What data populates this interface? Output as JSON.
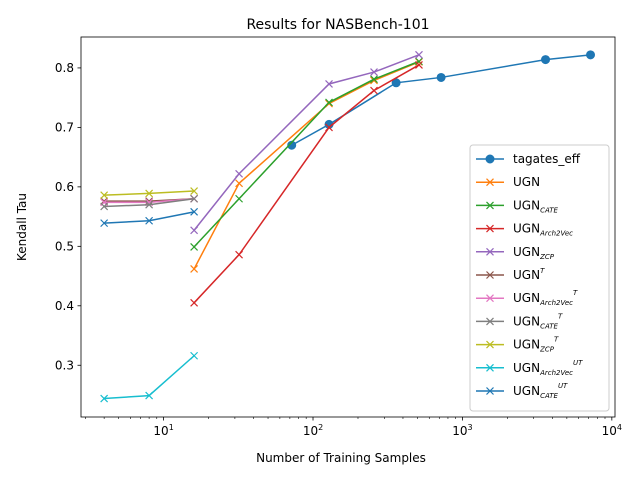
{
  "chart_data": {
    "type": "line",
    "title": "Results for NASBench-101",
    "xlabel": "Number of Training Samples",
    "ylabel": "Kendall Tau",
    "xscale": "log",
    "xlim": [
      2.8,
      10500
    ],
    "ylim": [
      0.213,
      0.852
    ],
    "x_major_ticks": [
      10,
      100,
      1000,
      10000
    ],
    "x_tick_labels": [
      {
        "base": "10",
        "exp": "1"
      },
      {
        "base": "10",
        "exp": "2"
      },
      {
        "base": "10",
        "exp": "3"
      },
      {
        "base": "10",
        "exp": "4"
      }
    ],
    "y_ticks": [
      0.3,
      0.4,
      0.5,
      0.6,
      0.7,
      0.8
    ],
    "y_tick_labels": [
      "0.3",
      "0.4",
      "0.5",
      "0.6",
      "0.7",
      "0.8"
    ],
    "legend_position": "lower-right",
    "grid": false,
    "series": [
      {
        "name": "tagates_eff",
        "name_base": "tagates_eff",
        "name_sub": "",
        "name_sup": "",
        "color": "#1f77b4",
        "marker": "circle",
        "x": [
          72,
          128,
          360,
          720,
          3600,
          7200
        ],
        "y": [
          0.67,
          0.705,
          0.775,
          0.784,
          0.814,
          0.822
        ]
      },
      {
        "name": "UGN",
        "name_base": "UGN",
        "name_sub": "",
        "name_sup": "",
        "color": "#ff7f0e",
        "marker": "x",
        "x": [
          16,
          32,
          128,
          256,
          512
        ],
        "y": [
          0.462,
          0.606,
          0.74,
          0.779,
          0.81
        ]
      },
      {
        "name": "UGN_CATE",
        "name_base": "UGN",
        "name_sub": "CATE",
        "name_sup": "",
        "color": "#2ca02c",
        "marker": "x",
        "x": [
          16,
          32,
          128,
          256,
          512
        ],
        "y": [
          0.499,
          0.58,
          0.742,
          0.781,
          0.811
        ]
      },
      {
        "name": "UGN_Arch2Vec",
        "name_base": "UGN",
        "name_sub": "Arch2Vec",
        "name_sup": "",
        "color": "#d62728",
        "marker": "x",
        "x": [
          16,
          32,
          128,
          256,
          512
        ],
        "y": [
          0.405,
          0.486,
          0.7,
          0.762,
          0.805
        ]
      },
      {
        "name": "UGN_ZCP",
        "name_base": "UGN",
        "name_sub": "ZCP",
        "name_sup": "",
        "color": "#9467bd",
        "marker": "x",
        "x": [
          16,
          32,
          128,
          256,
          512
        ],
        "y": [
          0.527,
          0.622,
          0.773,
          0.793,
          0.822
        ]
      },
      {
        "name": "UGN^T",
        "name_base": "UGN",
        "name_sub": "",
        "name_sup": "T",
        "color": "#8c564b",
        "marker": "x",
        "x": [
          4,
          8,
          16
        ],
        "y": [
          0.576,
          0.576,
          0.58
        ]
      },
      {
        "name": "UGN_Arch2Vec^T",
        "name_base": "UGN",
        "name_sub": "Arch2Vec",
        "name_sup": "T",
        "color": "#e377c2",
        "marker": "x",
        "x": [
          4,
          8,
          16
        ],
        "y": [
          0.574,
          0.574,
          0.58
        ]
      },
      {
        "name": "UGN_CATE^T",
        "name_base": "UGN",
        "name_sub": "CATE",
        "name_sup": "T",
        "color": "#7f7f7f",
        "marker": "x",
        "x": [
          4,
          8,
          16
        ],
        "y": [
          0.567,
          0.57,
          0.58
        ]
      },
      {
        "name": "UGN_ZCP^T",
        "name_base": "UGN",
        "name_sub": "ZCP",
        "name_sup": "T",
        "color": "#bcbd22",
        "marker": "x",
        "x": [
          4,
          8,
          16
        ],
        "y": [
          0.586,
          0.589,
          0.593
        ]
      },
      {
        "name": "UGN_Arch2Vec^UT",
        "name_base": "UGN",
        "name_sub": "Arch2Vec",
        "name_sup": "UT",
        "color": "#17becf",
        "marker": "x",
        "x": [
          4,
          8,
          16
        ],
        "y": [
          0.244,
          0.249,
          0.316
        ]
      },
      {
        "name": "UGN_CATE^UT",
        "name_base": "UGN",
        "name_sub": "CATE",
        "name_sup": "UT",
        "color": "#1f77b4",
        "marker": "x",
        "x": [
          4,
          8,
          16
        ],
        "y": [
          0.539,
          0.543,
          0.558
        ]
      }
    ]
  }
}
